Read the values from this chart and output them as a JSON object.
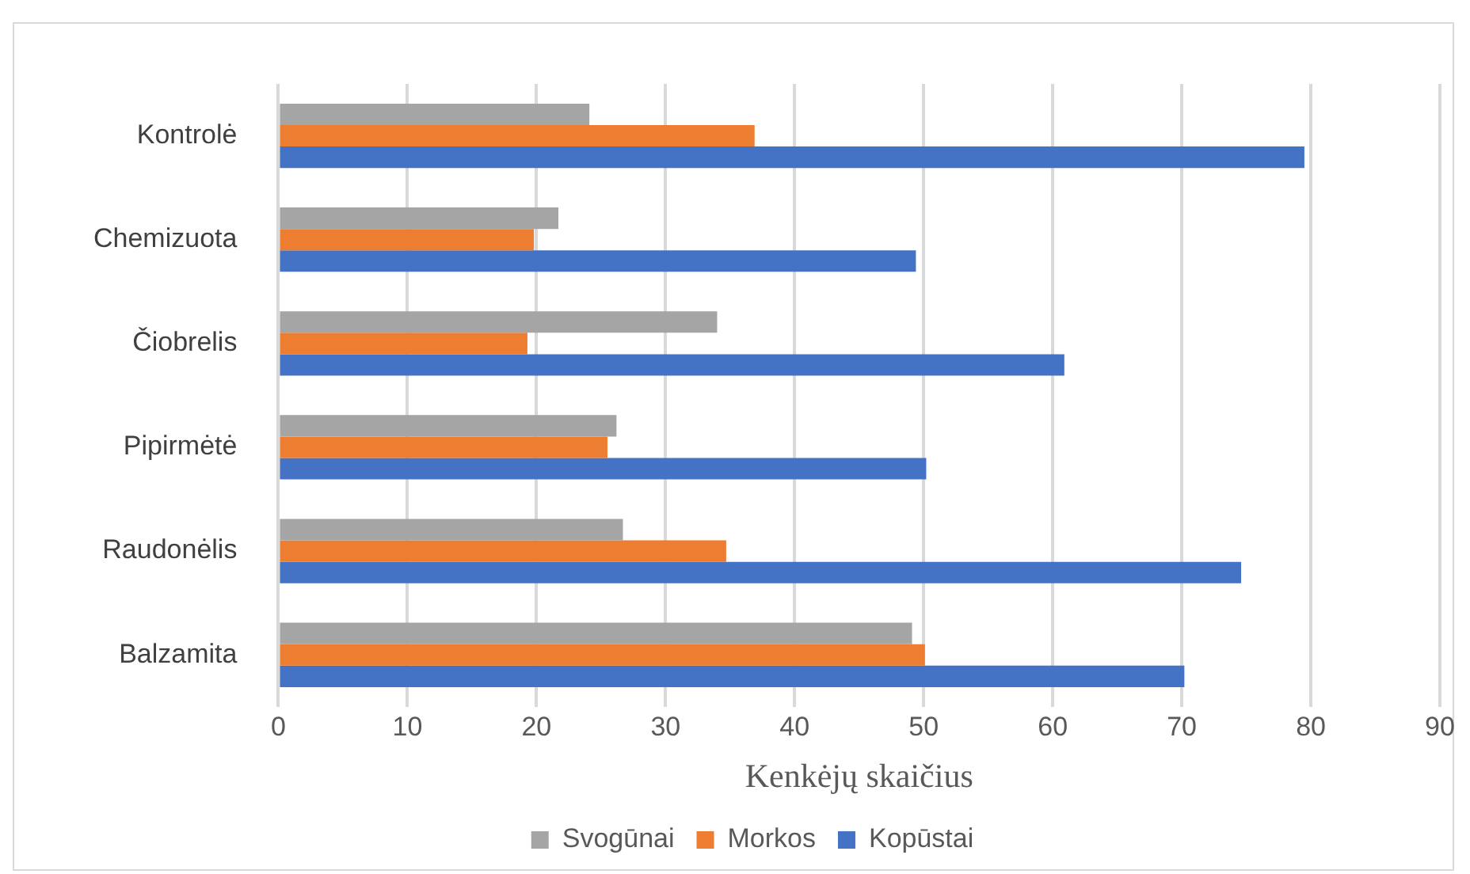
{
  "chart_data": {
    "type": "bar",
    "orientation": "horizontal",
    "xlabel": "Kenkėjų skaičius",
    "categories": [
      "Kontrolė",
      "Chemizuota",
      "Čiobrelis",
      "Pipirmėtė",
      "Raudonėlis",
      "Balzamita"
    ],
    "series": [
      {
        "name": "Svogūnai",
        "color": "#a5a5a5",
        "values": [
          24.1,
          21.7,
          34.0,
          26.2,
          26.7,
          49.1
        ]
      },
      {
        "name": "Morkos",
        "color": "#ed7d31",
        "values": [
          36.9,
          19.8,
          19.3,
          25.5,
          34.7,
          50.1
        ]
      },
      {
        "name": "Kopūstai",
        "color": "#4472c4",
        "values": [
          79.5,
          49.4,
          60.9,
          50.2,
          74.6,
          70.2
        ]
      }
    ],
    "xlim": [
      0,
      90
    ],
    "xticks": [
      0,
      10,
      20,
      30,
      40,
      50,
      60,
      70,
      80,
      90
    ],
    "grid": "x",
    "legend": "bottom"
  }
}
